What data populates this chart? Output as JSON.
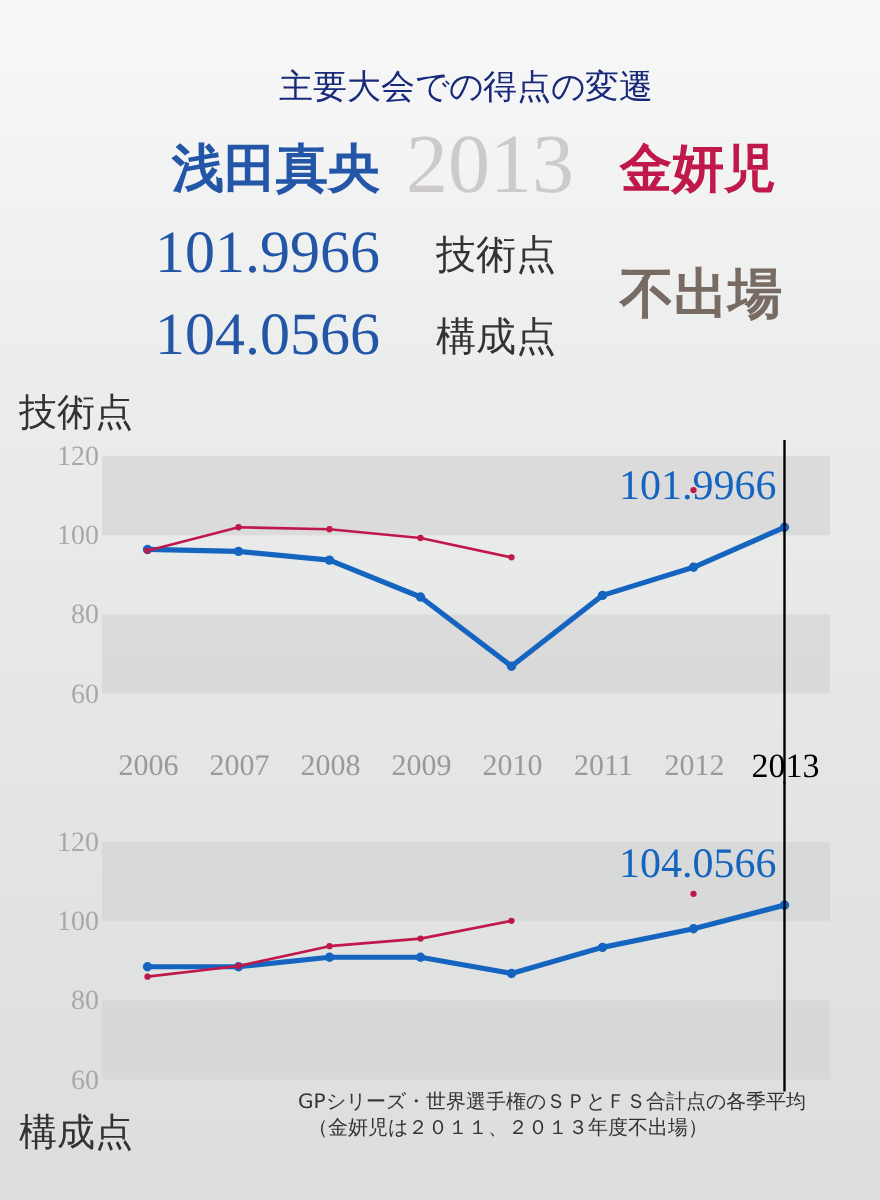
{
  "chart_data": [
    {
      "type": "other",
      "title": "主要大会での得点の変遷",
      "annotations": [
        "浅田真央",
        "2013",
        "金妍児",
        "101.9966",
        "技術点",
        "104.0566",
        "構成点",
        "不出場"
      ]
    },
    {
      "type": "line",
      "ylabel": "技術点",
      "categories": [
        "2006",
        "2007",
        "2008",
        "2009",
        "2010",
        "2011",
        "2012",
        "2013"
      ],
      "ylim": [
        60,
        120
      ],
      "yticks": [
        60,
        80,
        100,
        120
      ],
      "grid": false,
      "marker": "circle",
      "series": [
        {
          "color": "#1565c0",
          "values": [
            96.4,
            95.9,
            93.7,
            84.4,
            66.9,
            84.8,
            91.9,
            101.9966
          ],
          "value_labels": [
            null,
            null,
            null,
            null,
            null,
            null,
            null,
            "101.9966"
          ]
        },
        {
          "color": "#c0184a",
          "values": [
            96.1,
            102.0,
            101.5,
            99.3,
            94.4,
            null,
            111.4,
            null
          ]
        }
      ],
      "bands": [
        {
          "axis": "y",
          "from": 100,
          "to": 120,
          "color": "#d4d4d4"
        },
        {
          "axis": "y",
          "from": 60,
          "to": 80,
          "color": "#d4d4d4"
        }
      ],
      "ref_lines": [
        {
          "axis": "x",
          "value": "2013",
          "color": "#000000"
        }
      ]
    },
    {
      "type": "line",
      "ylabel": "構成点",
      "categories": [
        "2006",
        "2007",
        "2008",
        "2009",
        "2010",
        "2011",
        "2012",
        "2013"
      ],
      "ylim": [
        60,
        120
      ],
      "yticks": [
        60,
        80,
        100,
        120
      ],
      "grid": false,
      "marker": "circle",
      "tick_labels": "y",
      "series": [
        {
          "color": "#1565c0",
          "values": [
            88.5,
            88.5,
            90.9,
            90.9,
            86.8,
            93.4,
            98.1,
            104.0566
          ],
          "value_labels": [
            null,
            null,
            null,
            null,
            null,
            null,
            null,
            "104.0566"
          ]
        },
        {
          "color": "#c0184a",
          "values": [
            86.0,
            88.7,
            93.7,
            95.6,
            100.1,
            null,
            106.9,
            null
          ]
        }
      ],
      "bands": [
        {
          "axis": "y",
          "from": 100,
          "to": 120,
          "color": "#d4d4d4"
        },
        {
          "axis": "y",
          "from": 60,
          "to": 80,
          "color": "#d4d4d4"
        }
      ],
      "ref_lines": [
        {
          "axis": "x",
          "value": "2013",
          "color": "#000000"
        }
      ],
      "annotations": [
        "GPシリーズ・世界選手権のＳＰとＦＳ合計点の各季平均",
        "（金妍児は２０１１、２０１３年度不出場）"
      ]
    }
  ]
}
